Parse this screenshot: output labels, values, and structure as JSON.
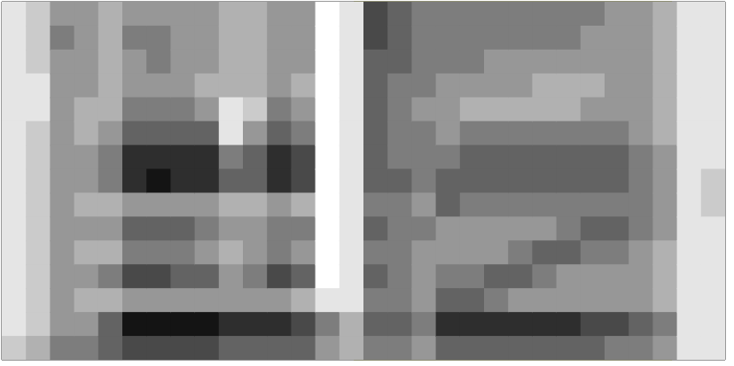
{
  "chart_data": {
    "type": "heatmap",
    "xlim": [
      0,
      30
    ],
    "ylim": [
      0,
      15
    ],
    "zlim": [
      0,
      9
    ],
    "tick_labels": false,
    "highlight": [
      14.6,
      27.8
    ],
    "cursor": 27.9,
    "cells": [
      [
        1,
        1,
        1,
        1,
        1,
        1,
        1,
        1,
        1,
        1,
        1,
        1,
        1,
        1,
        2
      ],
      [
        2,
        2,
        2,
        1,
        1,
        2,
        2,
        2,
        2,
        2,
        2,
        2,
        2,
        2,
        3
      ],
      [
        4,
        5,
        4,
        4,
        4,
        4,
        4,
        4,
        4,
        4,
        4,
        4,
        4,
        4,
        5
      ],
      [
        4,
        4,
        4,
        4,
        3,
        3,
        4,
        4,
        3,
        4,
        3,
        4,
        3,
        4,
        5
      ],
      [
        3,
        3,
        3,
        3,
        3,
        4,
        5,
        5,
        3,
        4,
        3,
        5,
        3,
        6,
        6
      ],
      [
        4,
        5,
        4,
        4,
        5,
        6,
        8,
        8,
        4,
        6,
        5,
        7,
        4,
        9,
        7
      ],
      [
        4,
        5,
        5,
        4,
        5,
        6,
        8,
        9,
        4,
        6,
        5,
        7,
        4,
        9,
        7
      ],
      [
        4,
        4,
        4,
        4,
        5,
        6,
        8,
        8,
        4,
        6,
        5,
        6,
        4,
        9,
        7
      ],
      [
        4,
        4,
        4,
        3,
        4,
        6,
        8,
        8,
        4,
        5,
        4,
        6,
        4,
        9,
        7
      ],
      [
        3,
        3,
        3,
        3,
        1,
        1,
        5,
        6,
        3,
        4,
        3,
        4,
        4,
        8,
        6
      ],
      [
        3,
        3,
        3,
        3,
        2,
        4,
        6,
        6,
        3,
        4,
        4,
        5,
        4,
        8,
        6
      ],
      [
        4,
        4,
        4,
        4,
        5,
        6,
        8,
        8,
        4,
        5,
        5,
        7,
        4,
        8,
        6
      ],
      [
        4,
        4,
        4,
        3,
        4,
        5,
        7,
        7,
        3,
        5,
        4,
        6,
        3,
        7,
        6
      ],
      [
        0,
        0,
        0,
        0,
        0,
        0,
        0,
        0,
        0,
        0,
        0,
        0,
        1,
        5,
        4
      ],
      [
        1,
        1,
        1,
        1,
        1,
        1,
        1,
        1,
        1,
        1,
        1,
        1,
        1,
        3,
        3
      ],
      [
        7,
        7,
        6,
        6,
        6,
        6,
        6,
        6,
        5,
        6,
        5,
        6,
        5,
        6,
        5
      ],
      [
        6,
        6,
        6,
        5,
        5,
        5,
        5,
        6,
        5,
        5,
        5,
        5,
        5,
        6,
        5
      ],
      [
        5,
        5,
        5,
        5,
        4,
        5,
        5,
        5,
        4,
        5,
        4,
        4,
        4,
        5,
        4
      ],
      [
        5,
        5,
        5,
        4,
        4,
        4,
        5,
        6,
        6,
        4,
        4,
        5,
        6,
        8,
        6
      ],
      [
        5,
        5,
        5,
        4,
        3,
        5,
        6,
        6,
        5,
        4,
        4,
        5,
        6,
        8,
        6
      ],
      [
        5,
        5,
        4,
        4,
        3,
        5,
        6,
        6,
        5,
        4,
        4,
        6,
        5,
        8,
        6
      ],
      [
        5,
        5,
        4,
        4,
        3,
        5,
        6,
        6,
        5,
        4,
        5,
        6,
        4,
        8,
        6
      ],
      [
        5,
        5,
        4,
        3,
        3,
        5,
        6,
        6,
        5,
        4,
        6,
        5,
        4,
        8,
        6
      ],
      [
        5,
        5,
        4,
        3,
        3,
        5,
        6,
        6,
        5,
        5,
        6,
        4,
        4,
        8,
        6
      ],
      [
        5,
        4,
        4,
        3,
        4,
        5,
        6,
        6,
        5,
        6,
        5,
        4,
        4,
        7,
        6
      ],
      [
        4,
        4,
        4,
        4,
        4,
        5,
        6,
        6,
        5,
        6,
        5,
        4,
        4,
        7,
        5
      ],
      [
        4,
        4,
        4,
        4,
        4,
        4,
        5,
        5,
        5,
        5,
        4,
        4,
        4,
        6,
        5
      ],
      [
        3,
        3,
        3,
        3,
        3,
        3,
        4,
        4,
        4,
        4,
        3,
        3,
        3,
        5,
        4
      ],
      [
        1,
        1,
        1,
        1,
        1,
        1,
        1,
        1,
        1,
        1,
        1,
        1,
        1,
        1,
        1
      ],
      [
        1,
        1,
        1,
        1,
        1,
        1,
        1,
        2,
        2,
        1,
        1,
        1,
        1,
        1,
        1
      ]
    ]
  }
}
